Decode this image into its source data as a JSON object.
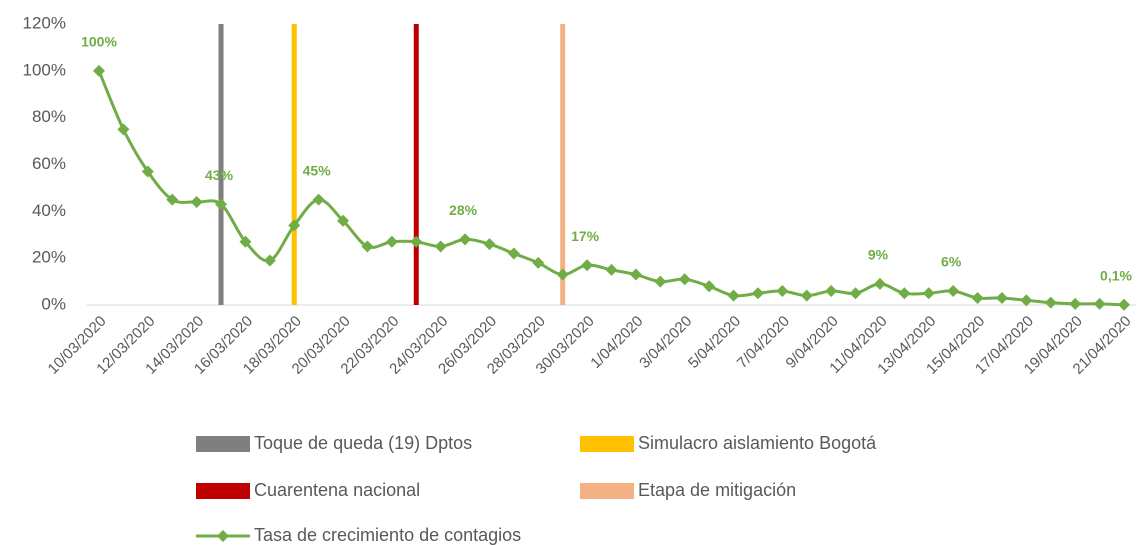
{
  "chart_data": {
    "type": "line",
    "categories": [
      "10/03/2020",
      null,
      "12/03/2020",
      null,
      "14/03/2020",
      null,
      "16/03/2020",
      null,
      "18/03/2020",
      null,
      "20/03/2020",
      null,
      "22/03/2020",
      null,
      "24/03/2020",
      null,
      "26/03/2020",
      null,
      "28/03/2020",
      null,
      "30/03/2020",
      null,
      "1/04/2020",
      null,
      "3/04/2020",
      null,
      "5/04/2020",
      null,
      "7/04/2020",
      null,
      "9/04/2020",
      null,
      "11/04/2020",
      null,
      "13/04/2020",
      null,
      "15/04/2020",
      null,
      "17/04/2020",
      null,
      "19/04/2020",
      null,
      "21/04/2020"
    ],
    "series": [
      {
        "name": "Toque de queda (19) Dptos",
        "type": "bar",
        "color": "#7f7f7f",
        "values": [
          null,
          null,
          null,
          null,
          null,
          120,
          null,
          null,
          null,
          null,
          null,
          null,
          null,
          null,
          null,
          null,
          null,
          null,
          null,
          null,
          null,
          null,
          null,
          null,
          null,
          null,
          null,
          null,
          null,
          null,
          null,
          null,
          null,
          null,
          null,
          null,
          null,
          null,
          null,
          null,
          null,
          null,
          null
        ]
      },
      {
        "name": "Simulacro aislamiento Bogotá",
        "type": "bar",
        "color": "#ffc000",
        "values": [
          null,
          null,
          null,
          null,
          null,
          null,
          null,
          null,
          120,
          null,
          null,
          null,
          null,
          null,
          null,
          null,
          null,
          null,
          null,
          null,
          null,
          null,
          null,
          null,
          null,
          null,
          null,
          null,
          null,
          null,
          null,
          null,
          null,
          null,
          null,
          null,
          null,
          null,
          null,
          null,
          null,
          null,
          null
        ]
      },
      {
        "name": "Cuarentena nacional",
        "type": "bar",
        "color": "#c00000",
        "values": [
          null,
          null,
          null,
          null,
          null,
          null,
          null,
          null,
          null,
          null,
          null,
          null,
          null,
          120,
          null,
          null,
          null,
          null,
          null,
          null,
          null,
          null,
          null,
          null,
          null,
          null,
          null,
          null,
          null,
          null,
          null,
          null,
          null,
          null,
          null,
          null,
          null,
          null,
          null,
          null,
          null,
          null,
          null
        ]
      },
      {
        "name": "Etapa de mitigación",
        "type": "bar",
        "color": "#f4b183",
        "values": [
          null,
          null,
          null,
          null,
          null,
          null,
          null,
          null,
          null,
          null,
          null,
          null,
          null,
          null,
          null,
          null,
          null,
          null,
          null,
          120,
          null,
          null,
          null,
          null,
          null,
          null,
          null,
          null,
          null,
          null,
          null,
          null,
          null,
          null,
          null,
          null,
          null,
          null,
          null,
          null,
          null,
          null,
          null
        ]
      },
      {
        "name": "Tasa de crecimiento de contagios",
        "type": "line",
        "color": "#70ad47",
        "values": [
          100,
          75,
          57,
          45,
          44,
          43,
          27,
          19,
          34,
          45,
          36,
          25,
          27,
          27,
          25,
          28,
          26,
          22,
          18,
          13,
          17,
          15,
          13,
          10,
          11,
          8,
          4,
          5,
          6,
          4,
          6,
          5,
          9,
          5,
          5,
          6,
          3,
          3,
          2,
          1,
          0.5,
          0.5,
          0.1
        ],
        "value_labels": [
          "100%",
          null,
          null,
          null,
          null,
          "43%",
          null,
          null,
          null,
          "45%",
          null,
          null,
          null,
          null,
          null,
          "28%",
          null,
          null,
          null,
          null,
          "17%",
          null,
          null,
          null,
          null,
          null,
          null,
          null,
          null,
          null,
          null,
          null,
          "9%",
          null,
          null,
          "6%",
          null,
          null,
          null,
          null,
          null,
          null,
          "0,1%"
        ]
      }
    ],
    "ylim": [
      0,
      120
    ],
    "yticks": [
      {
        "value": 0,
        "label": "0%"
      },
      {
        "value": 20,
        "label": "20%"
      },
      {
        "value": 40,
        "label": "40%"
      },
      {
        "value": 60,
        "label": "60%"
      },
      {
        "value": 80,
        "label": "80%"
      },
      {
        "value": 100,
        "label": "100%"
      },
      {
        "value": 120,
        "label": "120%"
      }
    ],
    "grid": false
  }
}
